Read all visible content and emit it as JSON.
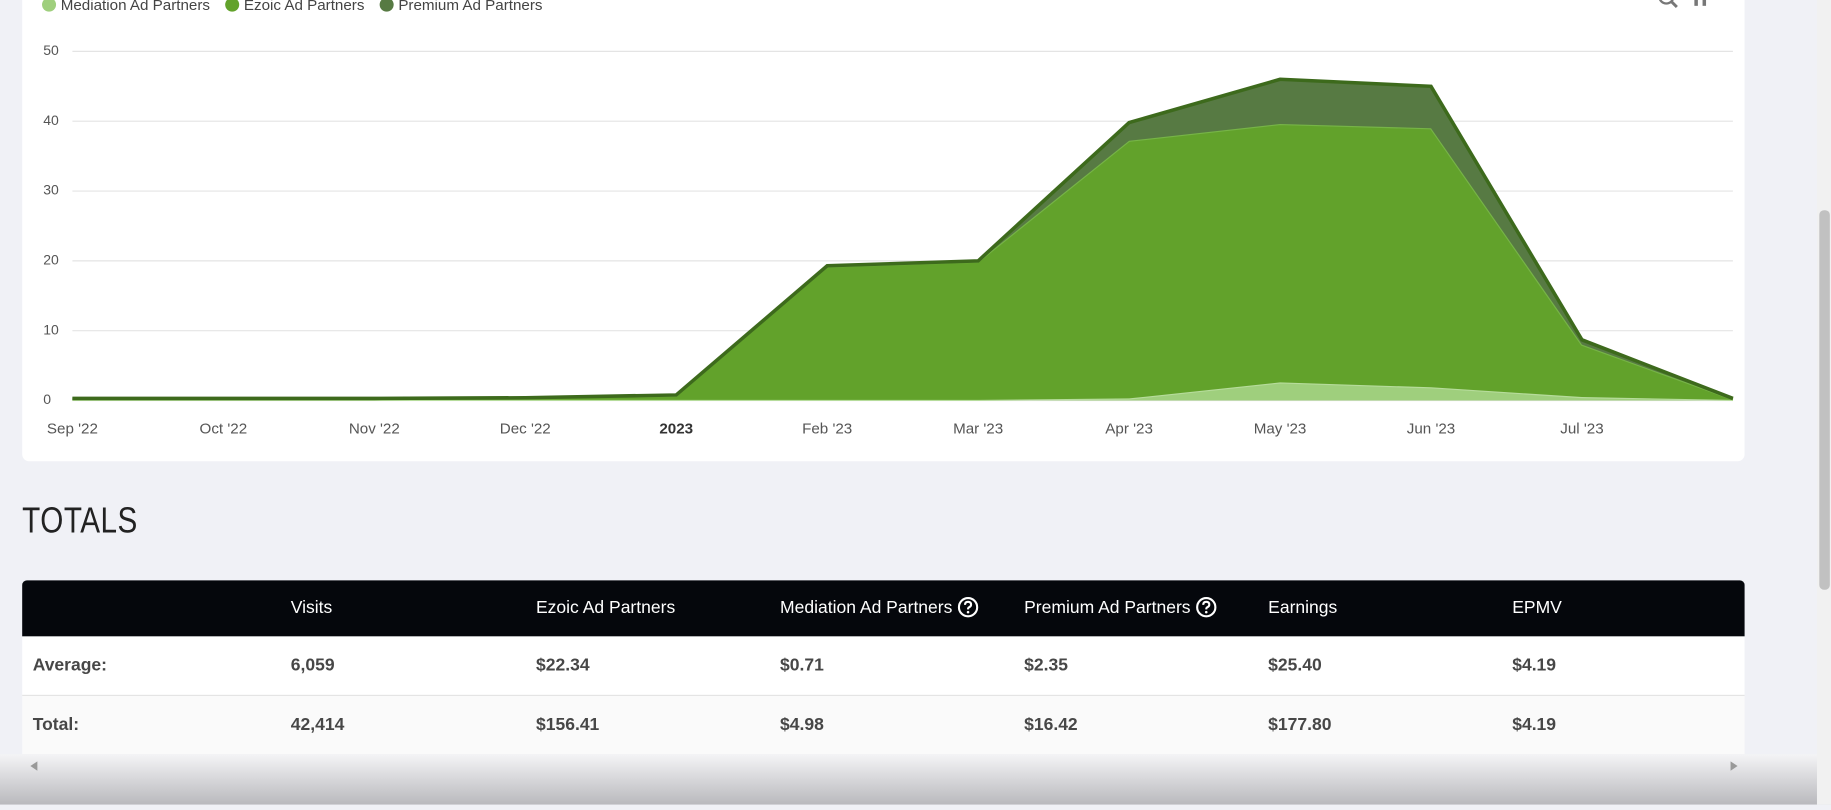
{
  "chart_data": {
    "type": "stacked_area",
    "categories": [
      "Sep '22",
      "Oct '22",
      "Nov '22",
      "Dec '22",
      "2023",
      "Feb '23",
      "Mar '23",
      "Apr '23",
      "May '23",
      "Jun '23",
      "Jul '23",
      null
    ],
    "series": [
      {
        "name": "Mediation Ad Partners",
        "color": "#9fcf7d",
        "values": [
          0.1,
          0.1,
          0.1,
          0.1,
          0.1,
          0.1,
          0.1,
          0.3,
          2.6,
          1.9,
          0.5,
          0.1
        ]
      },
      {
        "name": "Ezoic Ad Partners",
        "color": "#62a22b",
        "values": [
          0.2,
          0.2,
          0.2,
          0.3,
          0.6,
          19.1,
          19.8,
          36.9,
          37.0,
          37.1,
          7.5,
          0.1
        ]
      },
      {
        "name": "Premium Ad Partners",
        "color": "#577a43",
        "values": [
          0,
          0,
          0,
          0,
          0.1,
          0.1,
          0.1,
          2.6,
          6.4,
          6.0,
          0.7,
          0.1
        ]
      }
    ],
    "ylim": [
      0,
      50
    ],
    "yticks": [
      0,
      10,
      20,
      30,
      40,
      50
    ],
    "grid": true
  },
  "totals": {
    "title": "TOTALS",
    "columns": [
      "Visits",
      "Ezoic Ad Partners",
      "Mediation Ad Partners",
      "Premium Ad Partners",
      "Earnings",
      "EPMV"
    ],
    "rows": [
      {
        "label": "Average:",
        "values": [
          "6,059",
          "$22.34",
          "$0.71",
          "$2.35",
          "$25.40",
          "$4.19"
        ]
      },
      {
        "label": "Total:",
        "values": [
          "42,414",
          "$156.41",
          "$4.98",
          "$16.42",
          "$177.80",
          "$4.19"
        ]
      }
    ]
  }
}
